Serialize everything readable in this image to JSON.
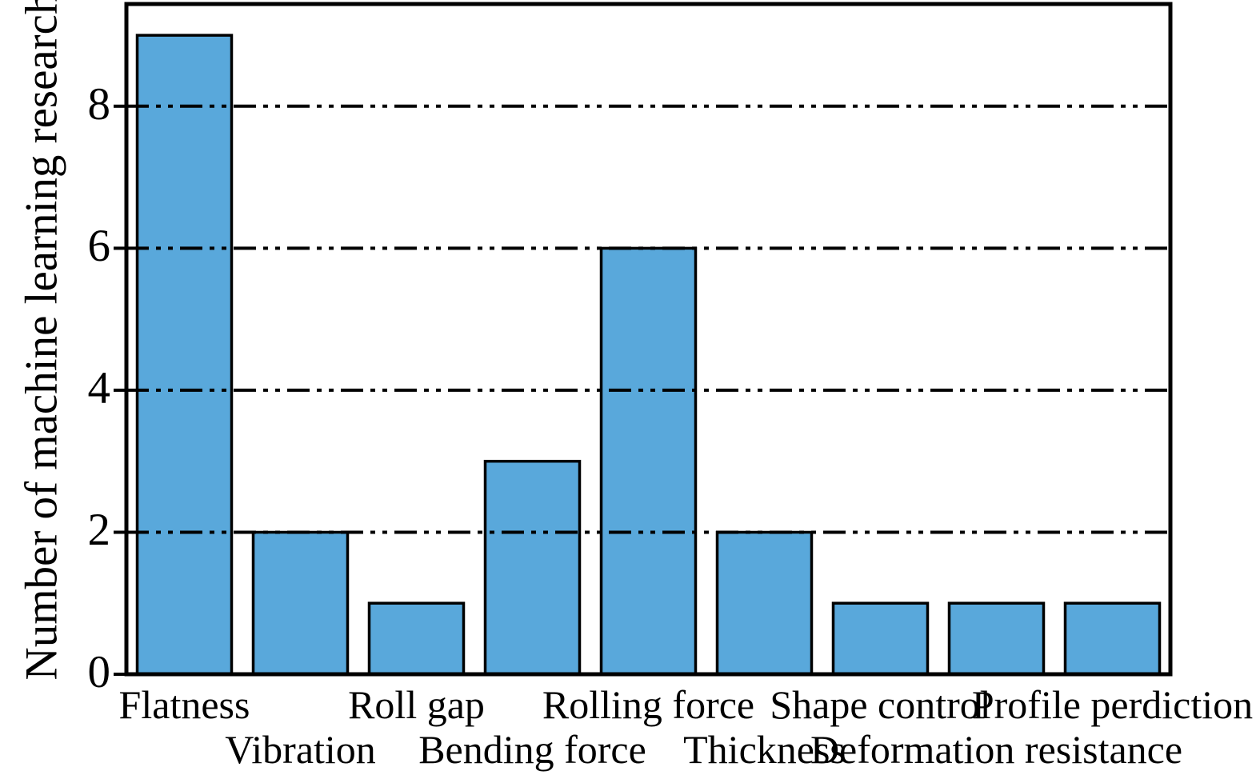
{
  "figure": {
    "background": "#ffffff"
  },
  "chart_data": {
    "type": "bar",
    "title": "",
    "xlabel": "",
    "ylabel": "Number of machine learning research",
    "categories": [
      "Flatness",
      "Vibration",
      "Roll gap",
      "Bending force",
      "Rolling force",
      "Thickness",
      "Shape control",
      "Deformation resistance",
      "Profile perdiction"
    ],
    "values": [
      9,
      2,
      1,
      3,
      6,
      2,
      1,
      1,
      1
    ],
    "yticks": [
      0,
      2,
      4,
      6,
      8
    ],
    "ylim": [
      0,
      9.44
    ],
    "grid": {
      "axis": "y",
      "at": [
        2,
        4,
        6,
        8
      ],
      "style": "dash-dot-dot",
      "color": "#000000",
      "drawn_over_bars": true
    },
    "legend_position": "none",
    "bar_fill": "#59A8DB",
    "bar_edge": "#000000",
    "axis_color": "#000000",
    "x_label_stagger_rows": 2
  }
}
